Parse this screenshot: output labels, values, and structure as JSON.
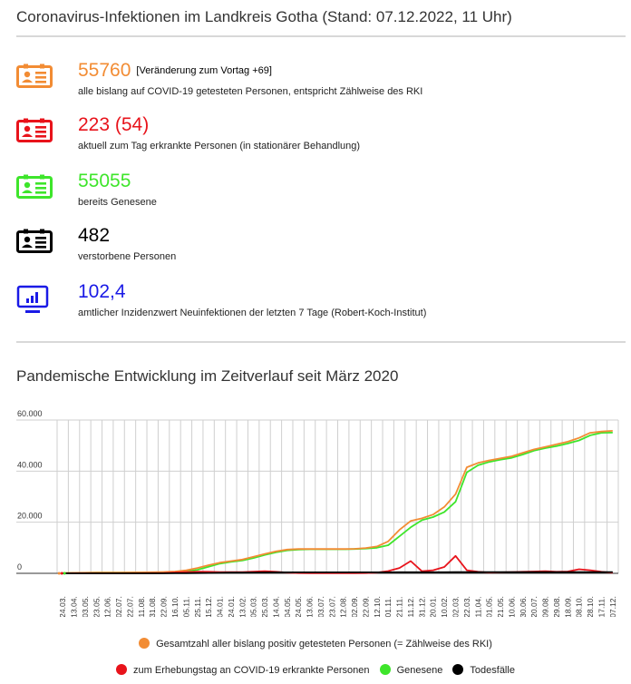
{
  "header": {
    "title": "Coronavirus-Infektionen im Landkreis Gotha (Stand: 07.12.2022, 11 Uhr)"
  },
  "stats": [
    {
      "value": "55760",
      "note": "[Veränderung zum Vortag +69]",
      "desc": "alle bislang auf COVID-19 getesteten Personen, entspricht Zählweise des RKI",
      "color": "#f28c34",
      "icon": "id-card-icon"
    },
    {
      "value": "223 (54)",
      "desc": "aktuell zum Tag erkrankte Personen (in stationärer Behandlung)",
      "color": "#e8131b",
      "icon": "id-card-icon"
    },
    {
      "value": "55055",
      "desc": "bereits Genesene",
      "color": "#3ee52b",
      "icon": "id-card-icon"
    },
    {
      "value": "482",
      "desc": "verstorbene Personen",
      "color": "#000000",
      "icon": "id-card-icon"
    },
    {
      "value": "102,4",
      "desc": "amtlicher Inzidenzwert Neuinfektionen der letzten 7 Tage (Robert-Koch-Institut)",
      "color": "#1a1ae6",
      "icon": "monitor-chart-icon"
    }
  ],
  "section": {
    "title": "Pandemische Entwicklung im Zeitverlauf seit März 2020"
  },
  "chart_data": {
    "type": "line",
    "ylim": [
      0,
      60000
    ],
    "yticks": [
      "0",
      "20.000",
      "40.000",
      "60.000"
    ],
    "ytick_values": [
      0,
      20000,
      40000,
      60000
    ],
    "grid": true,
    "legend_position": "bottom",
    "categories": [
      "24.03.",
      "13.04.",
      "03.05.",
      "23.05.",
      "12.06.",
      "02.07.",
      "22.07.",
      "11.08.",
      "31.08.",
      "22.09.",
      "16.10.",
      "05.11.",
      "25.11.",
      "15.12.",
      "04.01.",
      "24.01.",
      "13.02.",
      "05.03.",
      "25.03.",
      "14.04.",
      "04.05.",
      "24.05.",
      "13.06.",
      "03.07.",
      "23.07.",
      "12.08.",
      "02.09.",
      "22.09.",
      "12.10.",
      "01.11.",
      "21.11.",
      "11.12.",
      "31.12.",
      "20.01.",
      "10.02.",
      "02.03.",
      "22.03.",
      "11.04.",
      "01.05.",
      "21.05.",
      "10.06.",
      "30.06.",
      "20.07.",
      "09.08.",
      "29.08.",
      "18.09.",
      "08.10.",
      "28.10.",
      "17.11.",
      "07.12."
    ],
    "series": [
      {
        "name": "Gesamtzahl aller bislang positiv getesteten Personen (= Zählweise des RKI)",
        "color": "#f28c34",
        "values": [
          100,
          200,
          250,
          280,
          300,
          320,
          340,
          380,
          430,
          520,
          700,
          1200,
          2100,
          3200,
          4200,
          4800,
          5400,
          6500,
          7600,
          8600,
          9300,
          9500,
          9500,
          9500,
          9500,
          9500,
          9600,
          9900,
          10500,
          12500,
          17000,
          20500,
          21500,
          23000,
          26000,
          31000,
          41500,
          43200,
          44200,
          45000,
          45800,
          47200,
          48500,
          49500,
          50500,
          51500,
          53000,
          55000,
          55500,
          55760
        ]
      },
      {
        "name": "zum Erhebungstag an COVID-19 erkrankte Personen",
        "color": "#e8131b",
        "values": [
          50,
          30,
          20,
          10,
          10,
          10,
          10,
          30,
          60,
          150,
          350,
          550,
          650,
          600,
          500,
          450,
          450,
          650,
          800,
          600,
          300,
          100,
          50,
          30,
          20,
          30,
          50,
          100,
          300,
          900,
          2100,
          4800,
          800,
          1200,
          2500,
          6800,
          1200,
          600,
          300,
          400,
          500,
          600,
          700,
          800,
          600,
          700,
          1600,
          1200,
          600,
          223
        ]
      },
      {
        "name": "Genesene",
        "color": "#3ee52b",
        "values": [
          50,
          160,
          230,
          270,
          290,
          310,
          330,
          350,
          370,
          390,
          450,
          700,
          1400,
          2600,
          3800,
          4500,
          5000,
          6000,
          7200,
          8200,
          9000,
          9300,
          9400,
          9400,
          9400,
          9400,
          9500,
          9700,
          10000,
          11000,
          14500,
          18000,
          20800,
          22000,
          24000,
          28000,
          39500,
          42300,
          43600,
          44500,
          45200,
          46500,
          48000,
          49000,
          49800,
          50800,
          52000,
          54000,
          55000,
          55055
        ]
      },
      {
        "name": "Todesfälle",
        "color": "#000000",
        "values": [
          0,
          5,
          6,
          6,
          6,
          6,
          6,
          6,
          7,
          10,
          20,
          45,
          95,
          150,
          220,
          270,
          300,
          330,
          360,
          380,
          390,
          392,
          394,
          395,
          396,
          397,
          398,
          400,
          402,
          405,
          412,
          420,
          428,
          432,
          438,
          445,
          452,
          458,
          462,
          465,
          468,
          470,
          472,
          474,
          475,
          476,
          478,
          480,
          481,
          482
        ]
      }
    ]
  }
}
